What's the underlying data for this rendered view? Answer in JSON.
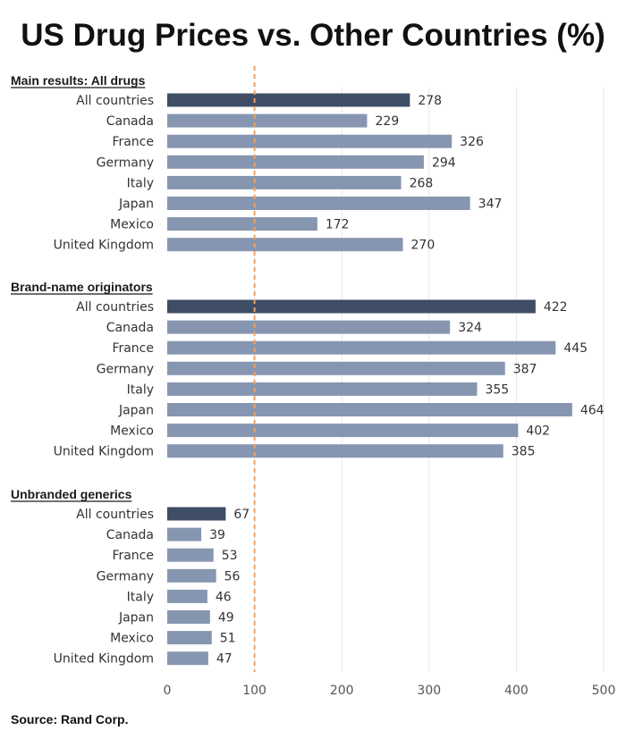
{
  "chart_data": {
    "type": "bar",
    "orientation": "horizontal",
    "title": "US Drug Prices vs. Other Countries (%)",
    "source": "Source: Rand Corp.",
    "xlim": [
      0,
      500
    ],
    "xticks": [
      0,
      100,
      200,
      300,
      400,
      500
    ],
    "reference_line": 100,
    "grid": true,
    "colors": {
      "summary_bar": "#3f4d65",
      "country_bar": "#8796b0",
      "reference_line": "#f0a060",
      "grid": "#e6e6e6"
    },
    "groups": [
      {
        "name": "Main results: All drugs",
        "categories": [
          "All countries",
          "Canada",
          "France",
          "Germany",
          "Italy",
          "Japan",
          "Mexico",
          "United Kingdom"
        ],
        "values": [
          278,
          229,
          326,
          294,
          268,
          347,
          172,
          270
        ]
      },
      {
        "name": "Brand-name originators",
        "categories": [
          "All countries",
          "Canada",
          "France",
          "Germany",
          "Italy",
          "Japan",
          "Mexico",
          "United Kingdom"
        ],
        "values": [
          422,
          324,
          445,
          387,
          355,
          464,
          402,
          385
        ]
      },
      {
        "name": "Unbranded generics",
        "categories": [
          "All countries",
          "Canada",
          "France",
          "Germany",
          "Italy",
          "Japan",
          "Mexico",
          "United Kingdom"
        ],
        "values": [
          67,
          39,
          53,
          56,
          46,
          49,
          51,
          47
        ]
      }
    ]
  }
}
